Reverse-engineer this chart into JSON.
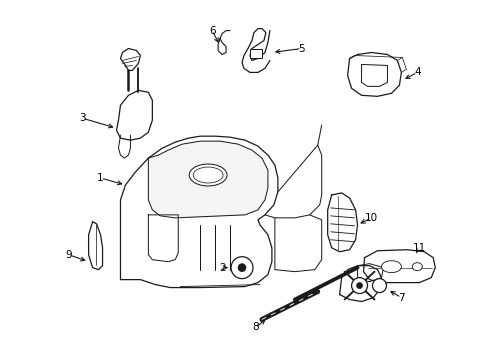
{
  "bg_color": "#ffffff",
  "fig_width": 4.89,
  "fig_height": 3.6,
  "dpi": 100,
  "line_color": "#1a1a1a",
  "line_width": 0.9
}
